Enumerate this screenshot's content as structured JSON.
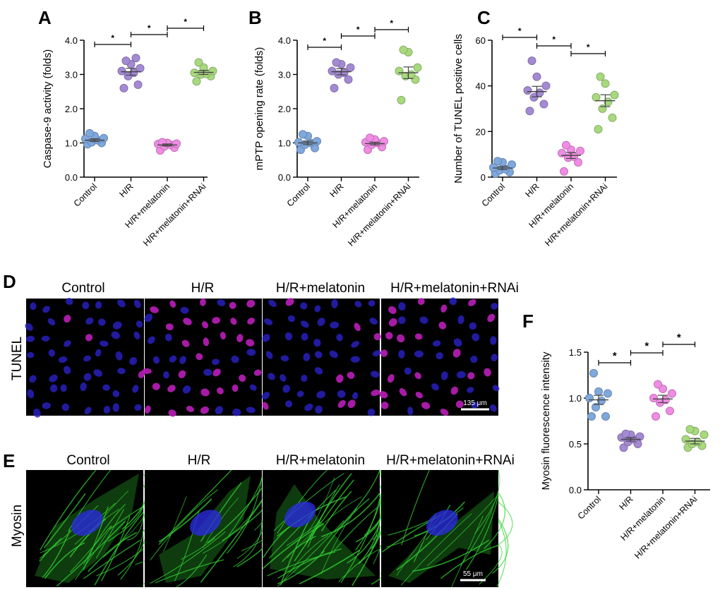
{
  "panel_letters": {
    "A": "A",
    "B": "B",
    "C": "C",
    "D": "D",
    "E": "E",
    "F": "F"
  },
  "groups": [
    "Control",
    "H/R",
    "H/R+melatonin",
    "H/R+melatonin+RNAi"
  ],
  "significance_mark": "*",
  "series_colors": {
    "Control": "#7FA8DD",
    "H/R": "#A48AD3",
    "H/R+melatonin": "#F08CE4",
    "H/R+melatonin+RNAi": "#A8D97E"
  },
  "chart_data": [
    {
      "panel": "A",
      "type": "scatter",
      "ylabel": "Caspase-9 activity (folds)",
      "ylim": [
        0,
        4
      ],
      "yticks": [
        "0.0",
        "1.0",
        "2.0",
        "3.0",
        "4.0"
      ],
      "ytick_values": [
        0,
        1,
        2,
        3,
        4
      ],
      "categories": [
        "Control",
        "H/R",
        "H/R+melatonin",
        "H/R+melatonin+RNAi"
      ],
      "points": [
        [
          0.96,
          1.0,
          1.02,
          1.08,
          1.12,
          1.14,
          1.2,
          1.28
        ],
        [
          2.6,
          2.7,
          2.95,
          3.05,
          3.1,
          3.18,
          3.3,
          3.4,
          3.48
        ],
        [
          0.78,
          0.86,
          0.9,
          0.95,
          0.97,
          0.98,
          1.0,
          1.02
        ],
        [
          2.8,
          2.95,
          3.0,
          3.02,
          3.05,
          3.1,
          3.2,
          3.35
        ]
      ],
      "means": [
        1.08,
        3.08,
        0.94,
        3.06
      ],
      "sems": [
        0.04,
        0.1,
        0.03,
        0.06
      ],
      "comparisons": [
        [
          0,
          1
        ],
        [
          1,
          2
        ],
        [
          2,
          3
        ]
      ]
    },
    {
      "panel": "B",
      "type": "scatter",
      "ylabel": "mPTP opening rate (folds)",
      "ylim": [
        0,
        4
      ],
      "yticks": [
        "0.0",
        "1.0",
        "2.0",
        "3.0",
        "4.0"
      ],
      "ytick_values": [
        0,
        1,
        2,
        3,
        4
      ],
      "categories": [
        "Control",
        "H/R",
        "H/R+melatonin",
        "H/R+melatonin+RNAi"
      ],
      "points": [
        [
          0.8,
          0.85,
          0.95,
          1.0,
          1.02,
          1.05,
          1.2,
          1.25
        ],
        [
          2.6,
          2.85,
          3.0,
          3.05,
          3.1,
          3.2,
          3.3,
          3.35
        ],
        [
          0.8,
          0.88,
          0.95,
          1.0,
          1.02,
          1.05,
          1.1,
          1.15
        ],
        [
          2.25,
          2.85,
          2.95,
          3.0,
          3.1,
          3.2,
          3.65,
          3.72
        ]
      ],
      "means": [
        1.0,
        3.08,
        0.98,
        3.05
      ],
      "sems": [
        0.05,
        0.09,
        0.04,
        0.17
      ],
      "comparisons": [
        [
          0,
          1
        ],
        [
          1,
          2
        ],
        [
          2,
          3
        ]
      ]
    },
    {
      "panel": "C",
      "type": "scatter",
      "ylabel": "Number of TUNEL positive cells",
      "ylim": [
        0,
        60
      ],
      "yticks": [
        "0",
        "20",
        "40",
        "60"
      ],
      "ytick_values": [
        0,
        20,
        40,
        60
      ],
      "categories": [
        "Control",
        "H/R",
        "H/R+melatonin",
        "H/R+melatonin+RNAi"
      ],
      "points": [
        [
          1.5,
          2.2,
          3.0,
          3.5,
          4.2,
          5.5,
          6.5,
          7.0
        ],
        [
          29,
          32,
          35,
          37,
          38,
          40,
          44,
          51
        ],
        [
          2.5,
          6.5,
          8.5,
          9.0,
          10.5,
          11.5,
          12.0,
          14.0
        ],
        [
          21,
          26,
          30,
          33,
          35,
          36,
          41,
          44
        ]
      ],
      "means": [
        4.0,
        37.5,
        9.5,
        33.5
      ],
      "sems": [
        0.7,
        2.3,
        1.3,
        2.6
      ],
      "comparisons": [
        [
          0,
          1
        ],
        [
          1,
          2
        ],
        [
          2,
          3
        ]
      ]
    },
    {
      "panel": "F",
      "type": "scatter",
      "ylabel": "Myosin fluorescence intensity",
      "ylim": [
        0,
        1.5
      ],
      "yticks": [
        "0.0",
        "0.5",
        "1.0",
        "1.5"
      ],
      "ytick_values": [
        0,
        0.5,
        1.0,
        1.5
      ],
      "categories": [
        "Control",
        "H/R",
        "H/R+melatonin",
        "H/R+melatonin+RNAi"
      ],
      "points": [
        [
          0.8,
          0.8,
          0.9,
          0.97,
          1.0,
          1.05,
          1.07,
          1.27
        ],
        [
          0.46,
          0.5,
          0.52,
          0.55,
          0.57,
          0.58,
          0.6,
          0.61
        ],
        [
          0.8,
          0.86,
          0.95,
          0.98,
          1.0,
          1.05,
          1.1,
          1.15
        ],
        [
          0.46,
          0.48,
          0.5,
          0.52,
          0.55,
          0.6,
          0.64,
          0.66
        ]
      ],
      "means": [
        0.98,
        0.55,
        0.99,
        0.53
      ],
      "sems": [
        0.05,
        0.02,
        0.04,
        0.03
      ],
      "comparisons": [
        [
          0,
          1
        ],
        [
          1,
          2
        ],
        [
          2,
          3
        ]
      ]
    }
  ],
  "image_panels": {
    "tunel": {
      "row_label": "TUNEL",
      "column_labels": [
        "Control",
        "H/R",
        "H/R+melatonin",
        "H/R+melatonin+RNAi"
      ],
      "positive_level": [
        0.1,
        1.0,
        0.35,
        0.85
      ],
      "nucleus_color": "#2A22C8",
      "positive_color": "#B01CB0",
      "scale_bar": "135 μm"
    },
    "myosin": {
      "row_label": "Myosin",
      "column_labels": [
        "Control",
        "H/R",
        "H/R+melatonin",
        "H/R+melatonin+RNAi"
      ],
      "fiber_color": "#33D633",
      "nucleus_color": "#2A2ADC",
      "scale_bar": "55 μm"
    }
  }
}
